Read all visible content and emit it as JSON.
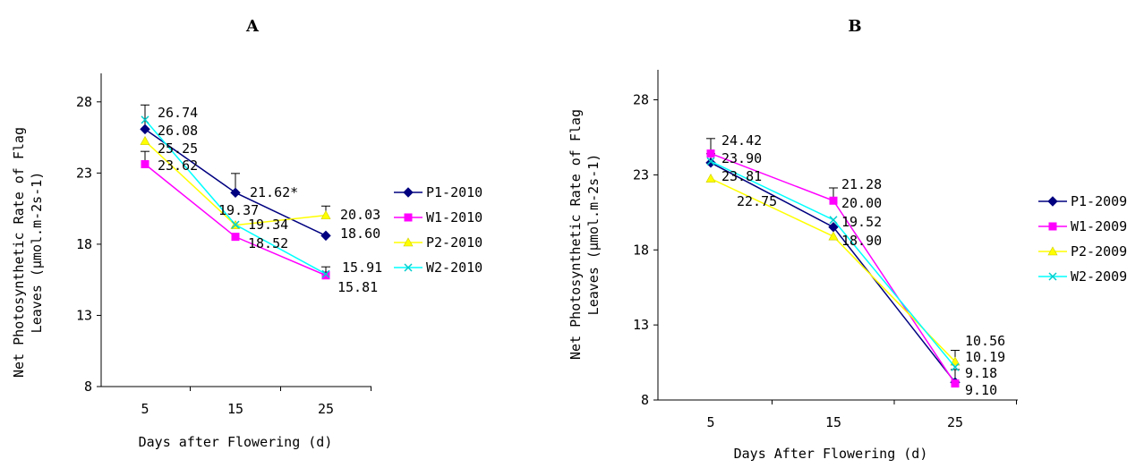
{
  "chart_data": [
    {
      "type": "line",
      "title": "A",
      "xlabel": "Days after Flowering (d)",
      "ylabel_lines": [
        "Net Photosynthetic Rate of Flag",
        "Leaves (μmol.m-2s-1)"
      ],
      "ylim": [
        8,
        30
      ],
      "yticks": [
        8,
        13,
        18,
        23,
        28
      ],
      "x": [
        5,
        15,
        25
      ],
      "x_tick_labels": [
        "5",
        "15",
        "25"
      ],
      "legend_position": "right",
      "series": [
        {
          "name": "P1-2010",
          "color": "#000080",
          "marker": "diamond",
          "values": [
            26.08,
            21.62,
            18.6
          ],
          "errors": [
            1.7,
            1.35,
            0
          ]
        },
        {
          "name": "W1-2010",
          "color": "#ff00ff",
          "marker": "square",
          "values": [
            23.62,
            18.52,
            15.81
          ],
          "errors": [
            0.9,
            0,
            0
          ]
        },
        {
          "name": "P2-2010",
          "color": "#ffff00",
          "marker": "triangle",
          "values": [
            25.25,
            19.34,
            20.03
          ],
          "errors": [
            0,
            0,
            0.65
          ]
        },
        {
          "name": "W2-2010",
          "color": "#00ffff",
          "marker": "x",
          "values": [
            26.74,
            19.37,
            15.91
          ],
          "errors": [
            0,
            0,
            0.5
          ]
        }
      ],
      "annotations": [
        {
          "text": "26.74",
          "x": 5,
          "y": 26.74
        },
        {
          "text": "26.08",
          "x": 5,
          "y": 26.08
        },
        {
          "text": "25.25",
          "x": 5,
          "y": 25.25
        },
        {
          "text": "23.62",
          "x": 5,
          "y": 23.62
        },
        {
          "text": "21.62*",
          "x": 15,
          "y": 21.62
        },
        {
          "text": "19.37",
          "x": 15,
          "y": 19.37
        },
        {
          "text": "19.34",
          "x": 15,
          "y": 19.34
        },
        {
          "text": "18.52",
          "x": 15,
          "y": 18.52
        },
        {
          "text": "20.03",
          "x": 25,
          "y": 20.03
        },
        {
          "text": "18.60",
          "x": 25,
          "y": 18.6
        },
        {
          "text": "15.91",
          "x": 25,
          "y": 15.91
        },
        {
          "text": "15.81",
          "x": 25,
          "y": 15.81
        }
      ]
    },
    {
      "type": "line",
      "title": "B",
      "xlabel": "Days After Flowering (d)",
      "ylabel_lines": [
        "Net Photosynthetic Rate of Flag",
        "Leaves (μmol.m-2s-1)"
      ],
      "ylim": [
        8,
        30
      ],
      "yticks": [
        8,
        13,
        18,
        23,
        28
      ],
      "x": [
        5,
        15,
        25
      ],
      "x_tick_labels": [
        "5",
        "15",
        "25"
      ],
      "legend_position": "right",
      "series": [
        {
          "name": "P1-2009",
          "color": "#000080",
          "marker": "diamond",
          "values": [
            23.81,
            19.52,
            9.18
          ],
          "errors": [
            0.6,
            0,
            0.85
          ]
        },
        {
          "name": "W1-2009",
          "color": "#ff00ff",
          "marker": "square",
          "values": [
            24.42,
            21.28,
            9.1
          ],
          "errors": [
            1.0,
            0.85,
            0
          ]
        },
        {
          "name": "P2-2009",
          "color": "#ffff00",
          "marker": "triangle",
          "values": [
            22.75,
            18.9,
            10.56
          ],
          "errors": [
            0,
            0,
            0.75
          ]
        },
        {
          "name": "W2-2009",
          "color": "#00ffff",
          "marker": "x",
          "values": [
            23.9,
            20.0,
            10.19
          ],
          "errors": [
            0,
            0,
            0
          ]
        }
      ],
      "annotations": [
        {
          "text": "24.42",
          "x": 5,
          "y": 24.42
        },
        {
          "text": "23.90",
          "x": 5,
          "y": 23.9
        },
        {
          "text": "23.81",
          "x": 5,
          "y": 23.81
        },
        {
          "text": "22.75",
          "x": 5,
          "y": 22.75
        },
        {
          "text": "21.28",
          "x": 15,
          "y": 21.28
        },
        {
          "text": "20.00",
          "x": 15,
          "y": 20.0
        },
        {
          "text": "19.52",
          "x": 15,
          "y": 19.52
        },
        {
          "text": "18.90",
          "x": 15,
          "y": 18.9
        },
        {
          "text": "10.56",
          "x": 25,
          "y": 10.56
        },
        {
          "text": "10.19",
          "x": 25,
          "y": 10.19
        },
        {
          "text": "9.18",
          "x": 25,
          "y": 9.18
        },
        {
          "text": "9.10",
          "x": 25,
          "y": 9.1
        }
      ]
    }
  ]
}
